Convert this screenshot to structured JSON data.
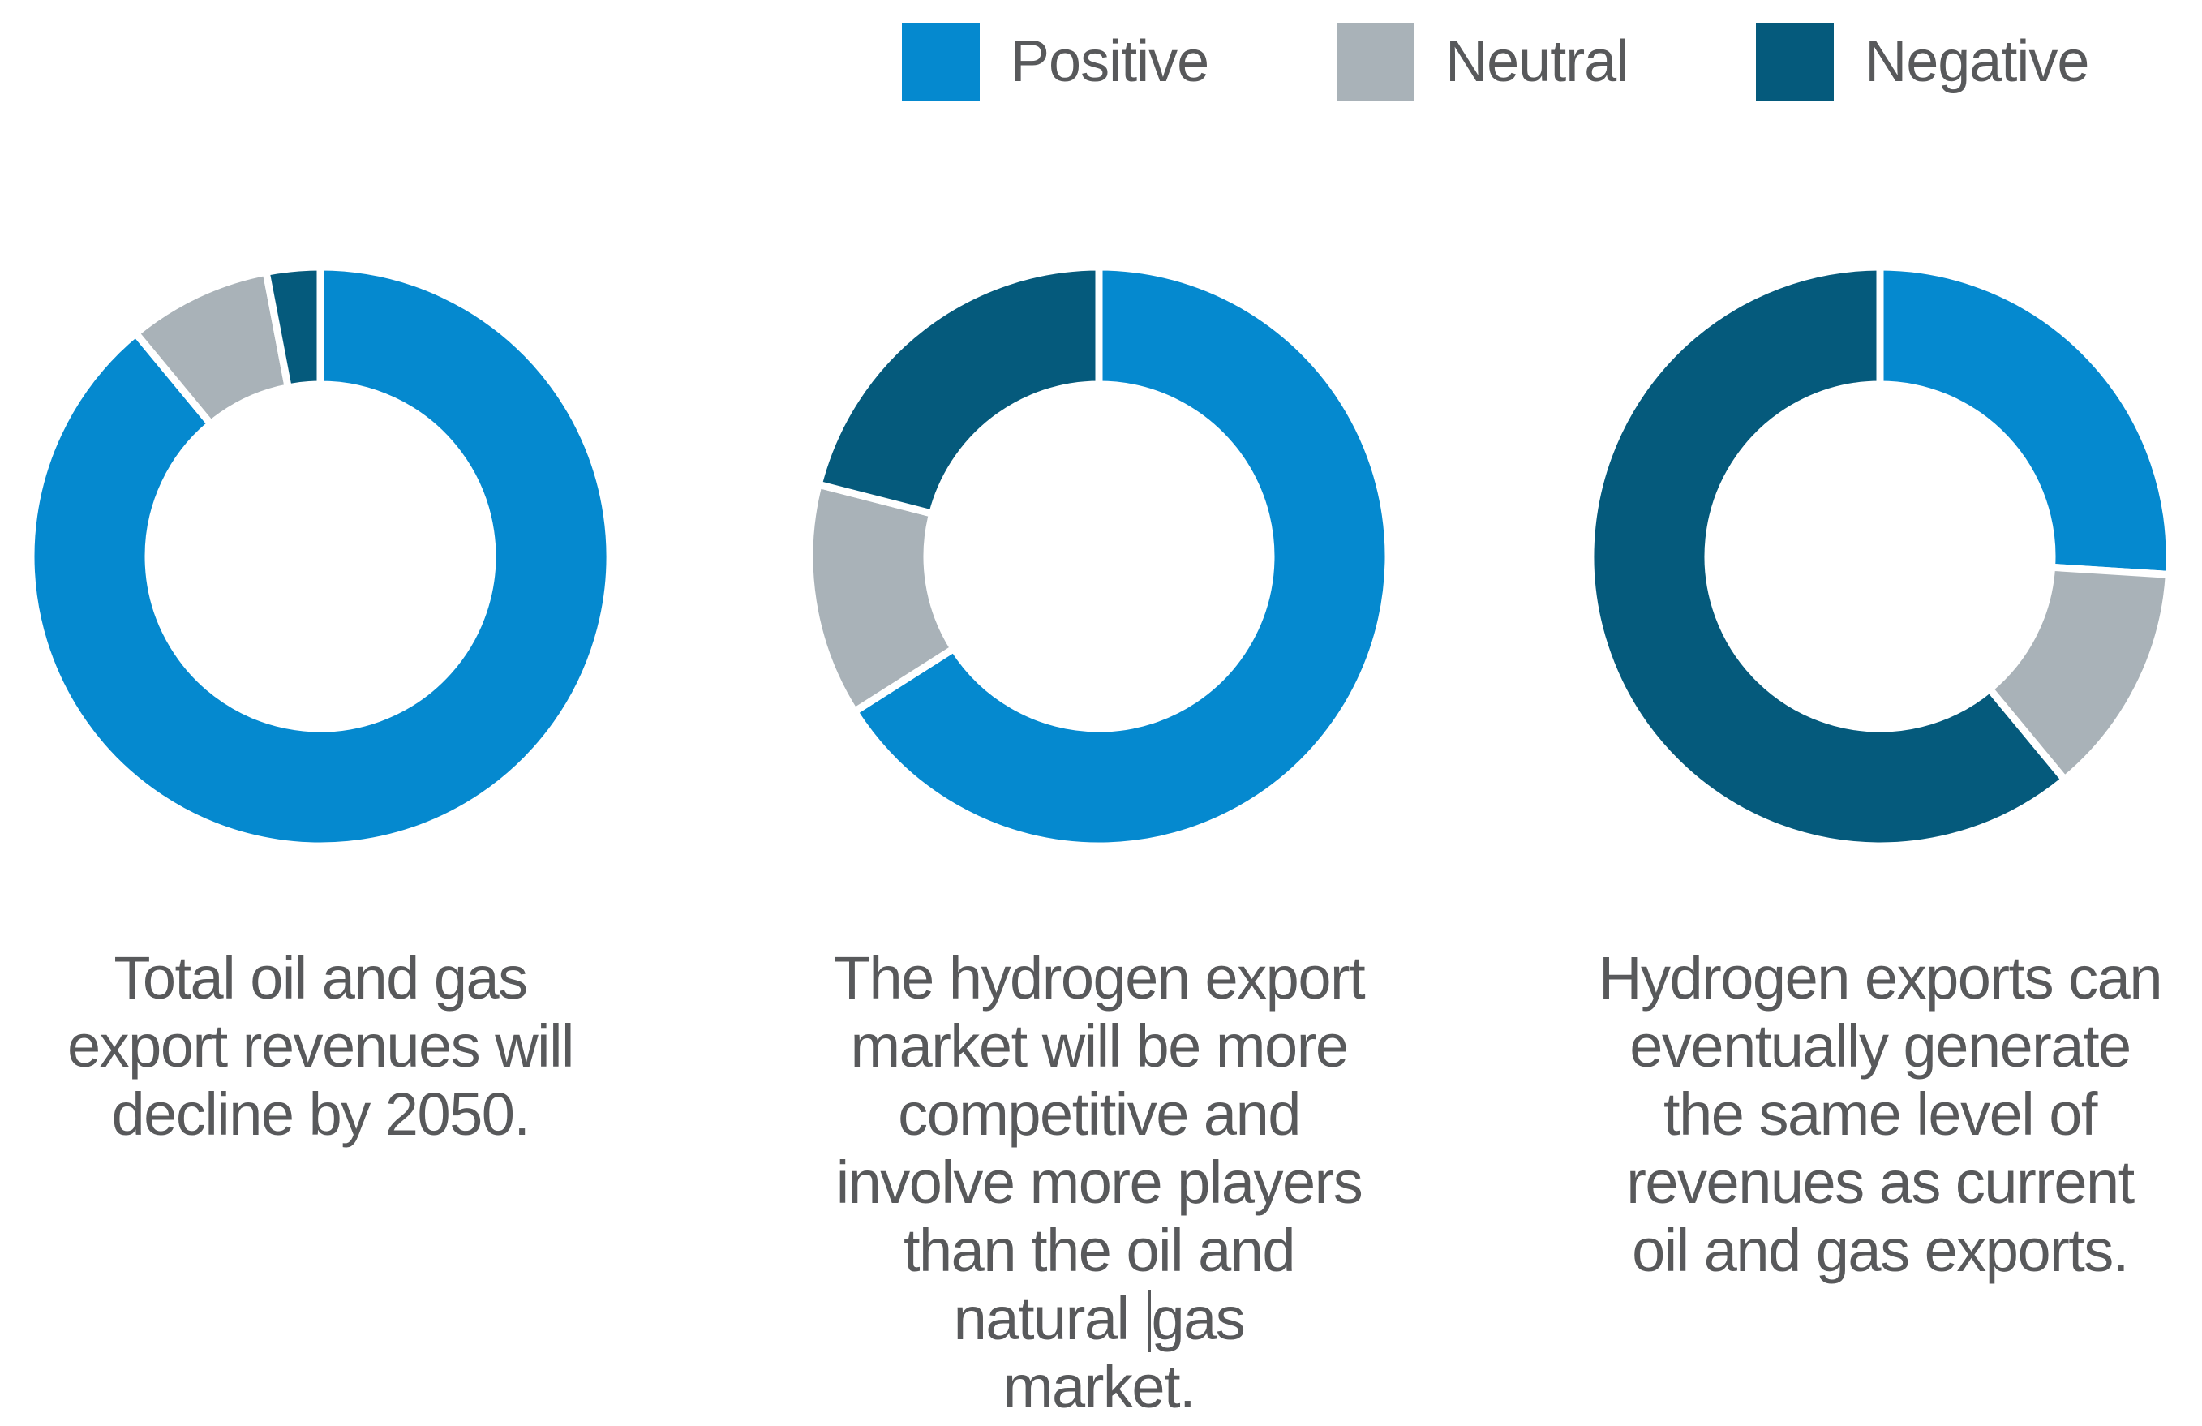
{
  "legend": {
    "items": [
      {
        "label": "Positive",
        "color": "#0589CF"
      },
      {
        "label": "Neutral",
        "color": "#A9B2B8"
      },
      {
        "label": "Negative",
        "color": "#055A7C"
      }
    ]
  },
  "text_color": "#58595B",
  "chart_data": [
    {
      "type": "pie",
      "subtype": "donut",
      "categories": [
        "Positive",
        "Neutral",
        "Negative"
      ],
      "values": [
        89,
        8,
        3
      ],
      "unit": "percent",
      "start_angle_deg": 0,
      "direction": "clockwise",
      "legend_position": "top",
      "caption": {
        "lines": [
          "Total oil and gas",
          "export revenues will",
          "decline by 2050."
        ]
      }
    },
    {
      "type": "pie",
      "subtype": "donut",
      "categories": [
        "Positive",
        "Neutral",
        "Negative"
      ],
      "values": [
        66,
        13,
        21
      ],
      "unit": "percent",
      "start_angle_deg": 0,
      "direction": "clockwise",
      "legend_position": "top",
      "caption": {
        "lines": [
          "The hydrogen export",
          "market will be more",
          "competitive and",
          "involve more players",
          "than the oil and",
          "natural gas",
          "market."
        ],
        "text_cursor": {
          "line": 5,
          "char": 8
        }
      }
    },
    {
      "type": "pie",
      "subtype": "donut",
      "categories": [
        "Positive",
        "Neutral",
        "Negative"
      ],
      "values": [
        26,
        13,
        61
      ],
      "unit": "percent",
      "start_angle_deg": 0,
      "direction": "clockwise",
      "legend_position": "top",
      "caption": {
        "lines": [
          "Hydrogen exports can",
          "eventually generate",
          "the same level of",
          "revenues as current",
          "oil and gas exports."
        ]
      }
    }
  ]
}
